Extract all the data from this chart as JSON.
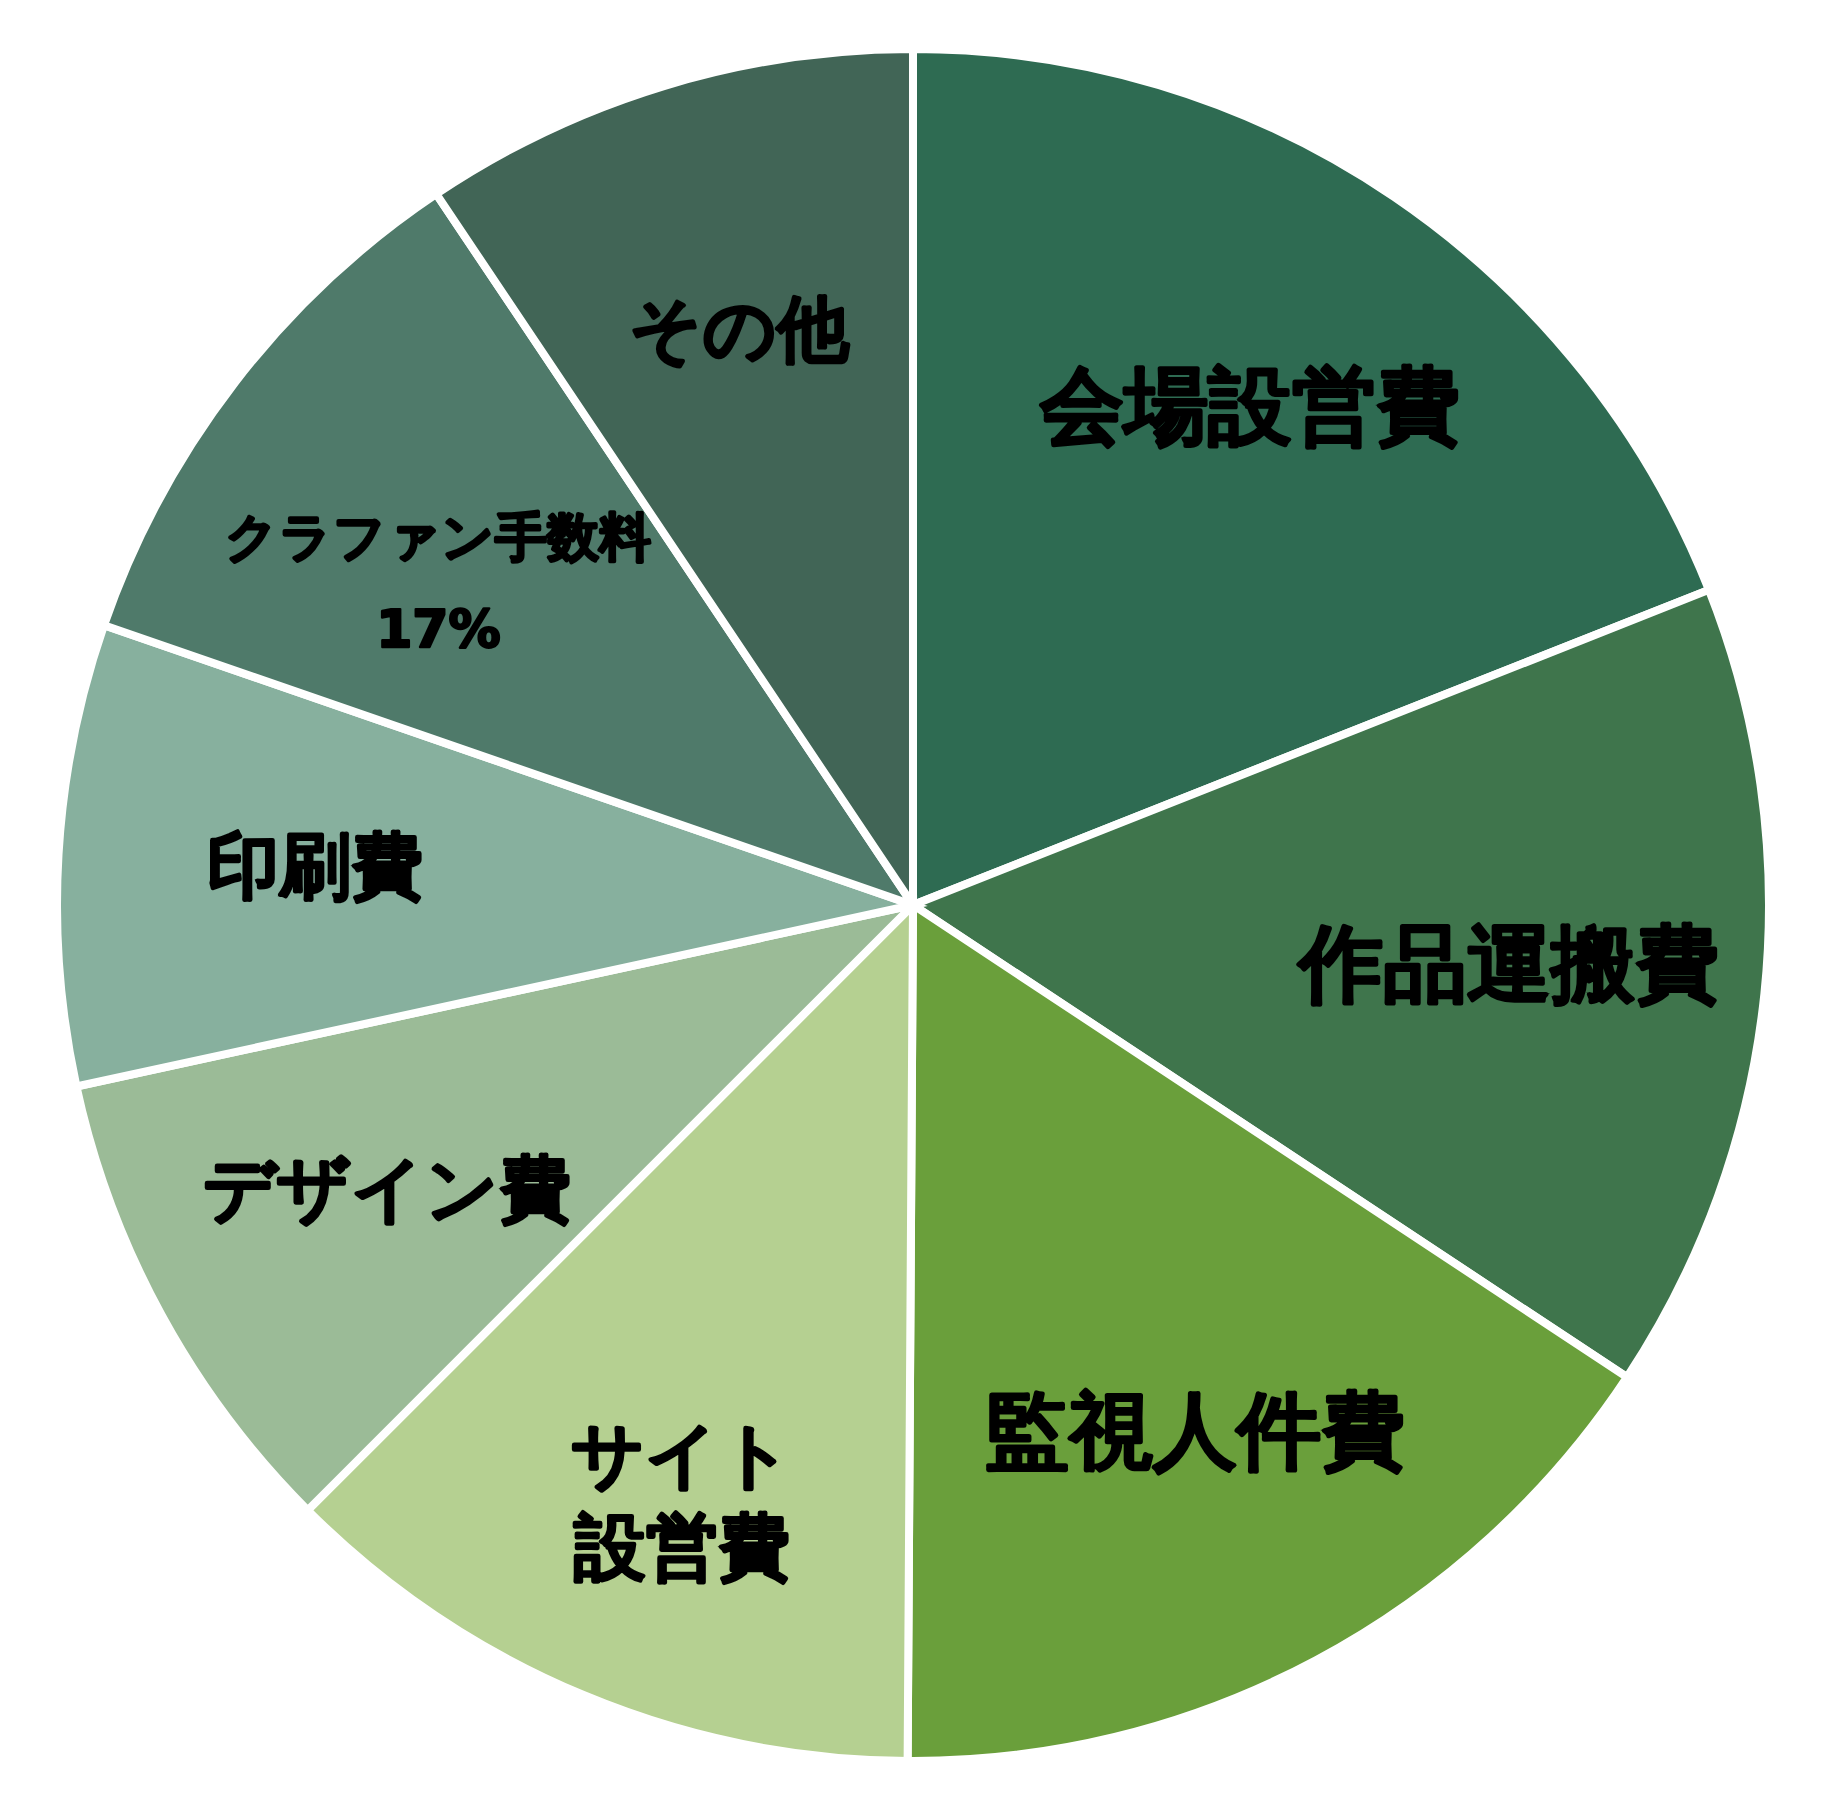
{
  "chart_data": {
    "type": "pie",
    "categories": [
      "会場設営費",
      "作品運搬費",
      "監視人件費",
      "サイト設営費",
      "デザイン費",
      "印刷費",
      "クラファン手数料\n17%",
      "その他"
    ],
    "values": [
      19,
      15.3,
      15.8,
      12.4,
      9.1,
      8.7,
      10.3,
      9.4
    ],
    "colors": [
      "#2e6b52",
      "#3f754c",
      "#6a9f3b",
      "#b5d091",
      "#9bbb97",
      "#87b09e",
      "#4f7a6a",
      "#416556"
    ]
  }
}
